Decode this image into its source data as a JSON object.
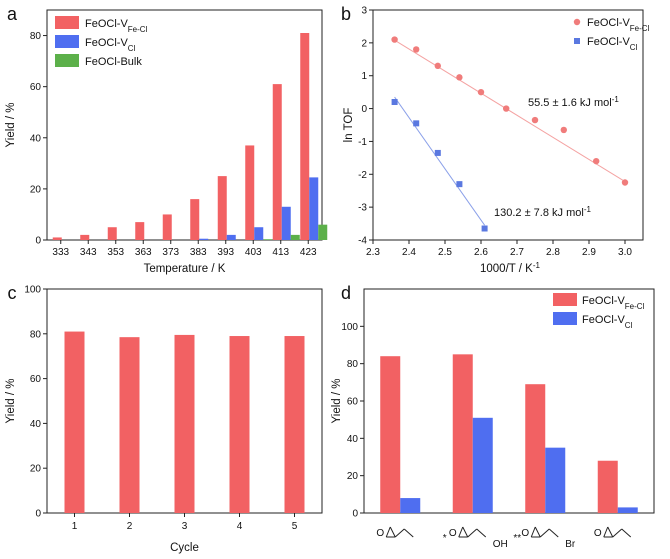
{
  "chart_data": [
    {
      "panel": "a",
      "type": "bar",
      "xlabel": "Temperature / K",
      "ylabel": "Yield / %",
      "ylim": [
        0,
        90
      ],
      "yticks": [
        0,
        20,
        40,
        60,
        80
      ],
      "categories": [
        "333",
        "343",
        "353",
        "363",
        "373",
        "383",
        "393",
        "403",
        "413",
        "423"
      ],
      "series": [
        {
          "name": "FeOCl-V",
          "sub": "Fe-Cl",
          "color": "#f26163",
          "values": [
            1,
            2,
            5,
            7,
            10,
            16,
            25,
            37,
            61,
            81
          ]
        },
        {
          "name": "FeOCl-V",
          "sub": "Cl",
          "color": "#4f6ef0",
          "values": [
            0,
            0,
            0,
            0,
            0,
            0.5,
            2,
            5,
            13,
            24.5
          ]
        },
        {
          "name": "FeOCl-Bulk",
          "sub": "",
          "color": "#5cb04a",
          "values": [
            0,
            0,
            0,
            0,
            0,
            0,
            0,
            0.3,
            2,
            6
          ]
        }
      ]
    },
    {
      "panel": "b",
      "type": "scatter",
      "xlabel": "1000/T / K",
      "xlabel_sup": "-1",
      "ylabel": "ln TOF",
      "xlim": [
        2.3,
        3.05
      ],
      "ylim": [
        -4,
        3
      ],
      "xticks": [
        "2.3",
        "2.4",
        "2.5",
        "2.6",
        "2.7",
        "2.8",
        "2.9",
        "3.0"
      ],
      "yticks": [
        "-4",
        "-3",
        "-2",
        "-1",
        "0",
        "1",
        "2",
        "3"
      ],
      "series": [
        {
          "name": "FeOCl-V",
          "sub": "Fe-Cl",
          "color": "#f07c7b",
          "marker": "circle",
          "x": [
            2.36,
            2.42,
            2.48,
            2.54,
            2.6,
            2.67,
            2.75,
            2.83,
            2.92,
            3.0
          ],
          "y": [
            2.1,
            1.8,
            1.3,
            0.95,
            0.5,
            0.0,
            -0.35,
            -0.65,
            -1.6,
            -2.25
          ],
          "fit": [
            [
              2.36,
              2.08
            ],
            [
              3.0,
              -2.22
            ]
          ],
          "annotation": "55.5 ± 1.6 kJ mol",
          "annotation_sup": "-1"
        },
        {
          "name": "FeOCl-V",
          "sub": "Cl",
          "color": "#5a78e0",
          "marker": "square",
          "x": [
            2.36,
            2.42,
            2.48,
            2.54,
            2.61
          ],
          "y": [
            0.2,
            -0.45,
            -1.35,
            -2.3,
            -3.65
          ],
          "fit": [
            [
              2.36,
              0.35
            ],
            [
              2.61,
              -3.55
            ]
          ],
          "annotation": "130.2 ± 7.8 kJ mol",
          "annotation_sup": "-1"
        }
      ]
    },
    {
      "panel": "c",
      "type": "bar",
      "xlabel": "Cycle",
      "ylabel": "Yield / %",
      "ylim": [
        0,
        100
      ],
      "yticks": [
        0,
        20,
        40,
        60,
        80,
        100
      ],
      "categories": [
        "1",
        "2",
        "3",
        "4",
        "5"
      ],
      "series": [
        {
          "name": "FeOCl-V",
          "sub": "Fe-Cl",
          "color": "#f26163",
          "values": [
            81,
            78.5,
            79.5,
            79,
            79
          ]
        }
      ]
    },
    {
      "panel": "d",
      "type": "bar",
      "xlabel": "",
      "ylabel": "Yield / %",
      "ylim": [
        0,
        120
      ],
      "yticks": [
        0,
        20,
        40,
        60,
        80,
        100
      ],
      "categories": [
        "",
        "*",
        "**",
        ""
      ],
      "substituents": [
        "",
        "OH",
        "Br",
        ""
      ],
      "series": [
        {
          "name": "FeOCl-V",
          "sub": "Fe-Cl",
          "color": "#f26163",
          "values": [
            84,
            85,
            69,
            28
          ]
        },
        {
          "name": "FeOCl-V",
          "sub": "Cl",
          "color": "#4f6ef0",
          "values": [
            8,
            51,
            35,
            3
          ]
        }
      ]
    }
  ]
}
